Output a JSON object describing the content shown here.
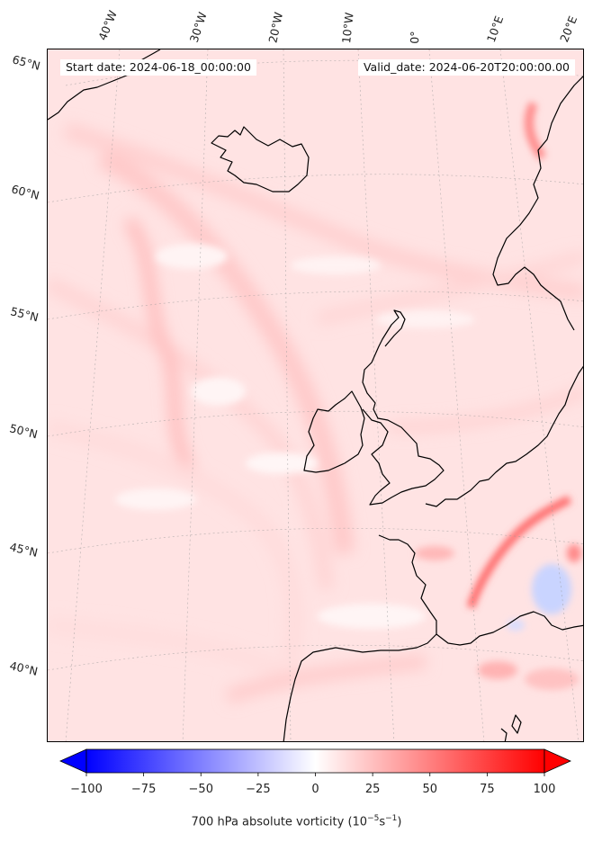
{
  "header": {
    "start_date": "Start date: 2024-06-18_00:00:00",
    "valid_date": "Valid_date: 2024-06-20T20:00:00.00"
  },
  "longitude_labels": [
    "40°W",
    "30°W",
    "20°W",
    "10°W",
    "0°",
    "10°E",
    "20°E"
  ],
  "latitude_labels": [
    "65°N",
    "60°N",
    "55°N",
    "50°N",
    "45°N",
    "40°N"
  ],
  "colorbar": {
    "ticks": [
      "−100",
      "−75",
      "−50",
      "−25",
      "0",
      "25",
      "50",
      "75",
      "100"
    ],
    "min": -100,
    "max": 100,
    "label_text": "700 hPa absolute vorticity (10",
    "label_exp1": "−5",
    "label_mid": "s",
    "label_exp2": "−1",
    "label_end": ")",
    "colors": {
      "low": "#0000ff",
      "mid": "#ffffff",
      "high": "#ff0000"
    },
    "extend": "both"
  },
  "map": {
    "field": "700 hPa absolute vorticity",
    "background_color": "#ffe6e6",
    "coastline_color": "#000000",
    "gridline_style": "dotted"
  }
}
